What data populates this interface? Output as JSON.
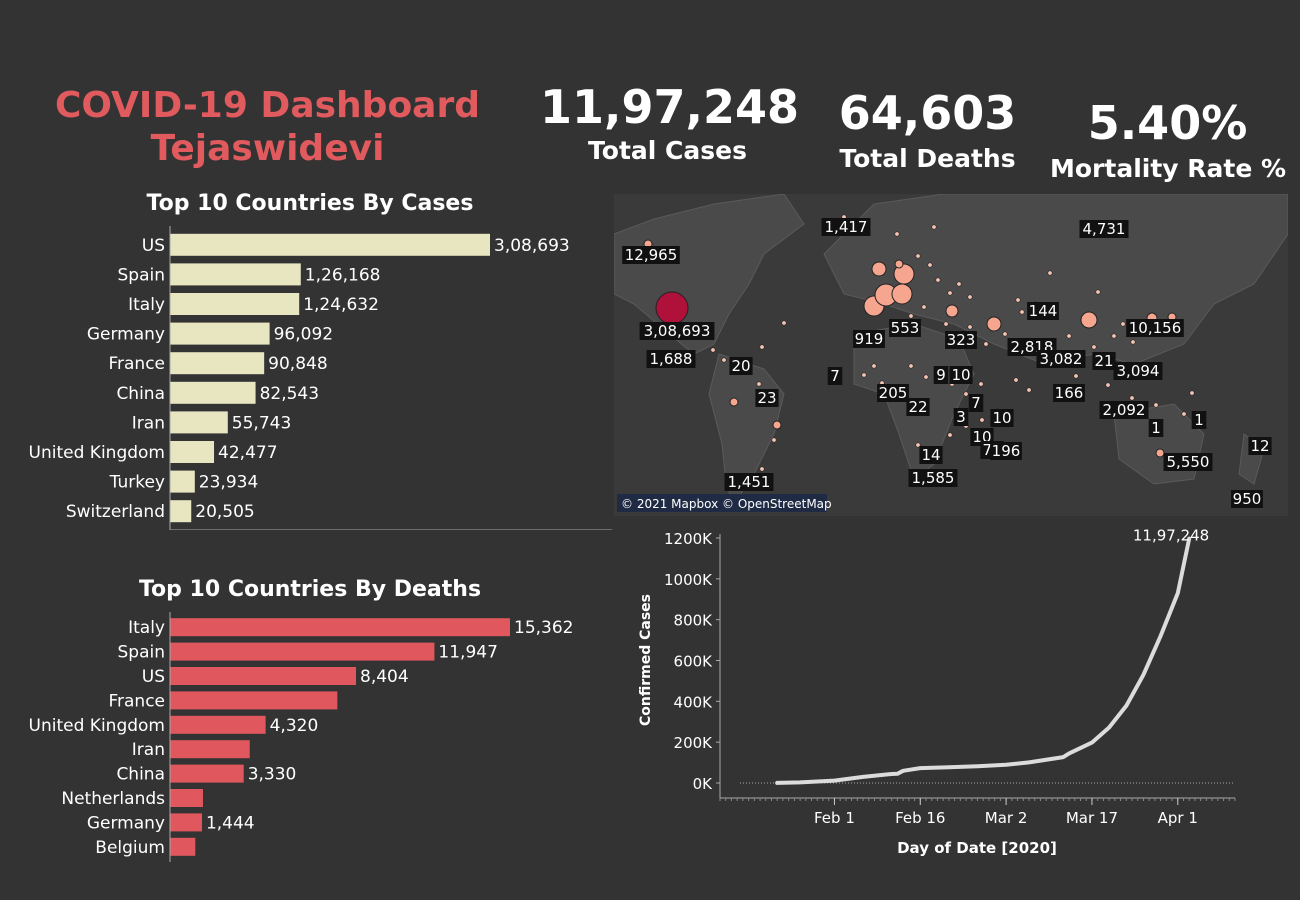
{
  "header": {
    "title_line1": "COVID-19 Dashboard",
    "title_line2": "Tejaswidevi"
  },
  "kpis": {
    "total_cases_value": "11,97,248",
    "total_cases_label": "Total Cases",
    "total_deaths_value": "64,603",
    "total_deaths_label": "Total Deaths",
    "mortality_value": "5.40%",
    "mortality_label": "Mortality Rate %"
  },
  "colors": {
    "background": "#333333",
    "title_red": "#E05A5E",
    "cases_bar": "#E8E6C0",
    "deaths_bar": "#E0585E",
    "line": "#DCDCDC",
    "map_water": "#3a3a3a",
    "map_land": "#4a4a4a",
    "bubble_small": "#F6A58E",
    "bubble_large": "#B0113A"
  },
  "map": {
    "attribution": "© 2021 Mapbox © OpenStreetMap",
    "labels": [
      "12,965",
      "1,417",
      "4,731",
      "3,08,693",
      "553",
      "144",
      "10,156",
      "919",
      "323",
      "2,818",
      "1,688",
      "3,082",
      "21",
      "3,094",
      "20",
      "7",
      "9",
      "10",
      "205",
      "166",
      "23",
      "22",
      "7",
      "2,092",
      "10",
      "3",
      "1",
      "1",
      "10",
      "70",
      "196",
      "14",
      "5,550",
      "12",
      "1,451",
      "1,585",
      "950"
    ],
    "bubbles": [
      {
        "name": "US",
        "value": 308693
      },
      {
        "name": "Spain",
        "value": 126168
      },
      {
        "name": "Italy",
        "value": 124632
      },
      {
        "name": "Germany",
        "value": 96092
      },
      {
        "name": "France",
        "value": 90848
      },
      {
        "name": "China",
        "value": 82543
      },
      {
        "name": "Iran",
        "value": 55743
      },
      {
        "name": "United Kingdom",
        "value": 42477
      }
    ]
  },
  "chart_data": [
    {
      "type": "bar",
      "title": "Top 10 Countries By  Cases",
      "categories": [
        "US",
        "Spain",
        "Italy",
        "Germany",
        "France",
        "China",
        "Iran",
        "United Kingdom",
        "Turkey",
        "Switzerland"
      ],
      "values": [
        308693,
        126168,
        124632,
        96092,
        90848,
        82543,
        55743,
        42477,
        23934,
        20505
      ],
      "value_labels": [
        "3,08,693",
        "1,26,168",
        "1,24,632",
        "96,092",
        "90,848",
        "82,543",
        "55,743",
        "42,477",
        "23,934",
        "20,505"
      ],
      "orientation": "horizontal"
    },
    {
      "type": "bar",
      "title": "Top 10 Countries By  Deaths",
      "categories": [
        "Italy",
        "Spain",
        "US",
        "France",
        "United Kingdom",
        "Iran",
        "China",
        "Netherlands",
        "Germany",
        "Belgium"
      ],
      "values": [
        15362,
        11947,
        8404,
        7560,
        4320,
        3603,
        3330,
        1490,
        1444,
        1143
      ],
      "value_labels": [
        "15,362",
        "11,947",
        "8,404",
        "",
        "4,320",
        "",
        "3,330",
        "",
        "1,444",
        ""
      ],
      "orientation": "horizontal"
    },
    {
      "type": "line",
      "xlabel": "Day of Date [2020]",
      "ylabel": "Confirmed Cases",
      "x_ticks": [
        "Feb 1",
        "Feb 16",
        "Mar 2",
        "Mar 17",
        "Apr 1"
      ],
      "y_ticks": [
        "0K",
        "200K",
        "400K",
        "600K",
        "800K",
        "1000K",
        "1200K"
      ],
      "ylim": [
        0,
        1200000
      ],
      "end_label": "11,97,248",
      "x": [
        "2020-01-22",
        "2020-01-26",
        "2020-02-01",
        "2020-02-06",
        "2020-02-11",
        "2020-02-12",
        "2020-02-13",
        "2020-02-16",
        "2020-02-21",
        "2020-02-26",
        "2020-03-02",
        "2020-03-06",
        "2020-03-10",
        "2020-03-12",
        "2020-03-13",
        "2020-03-17",
        "2020-03-20",
        "2020-03-23",
        "2020-03-26",
        "2020-03-29",
        "2020-04-01",
        "2020-04-03"
      ],
      "y": [
        555,
        2900,
        12000,
        30000,
        44000,
        45000,
        60000,
        73000,
        77000,
        82000,
        89000,
        101000,
        118000,
        127000,
        145000,
        198000,
        272000,
        378000,
        530000,
        720000,
        930000,
        1197248
      ]
    }
  ]
}
